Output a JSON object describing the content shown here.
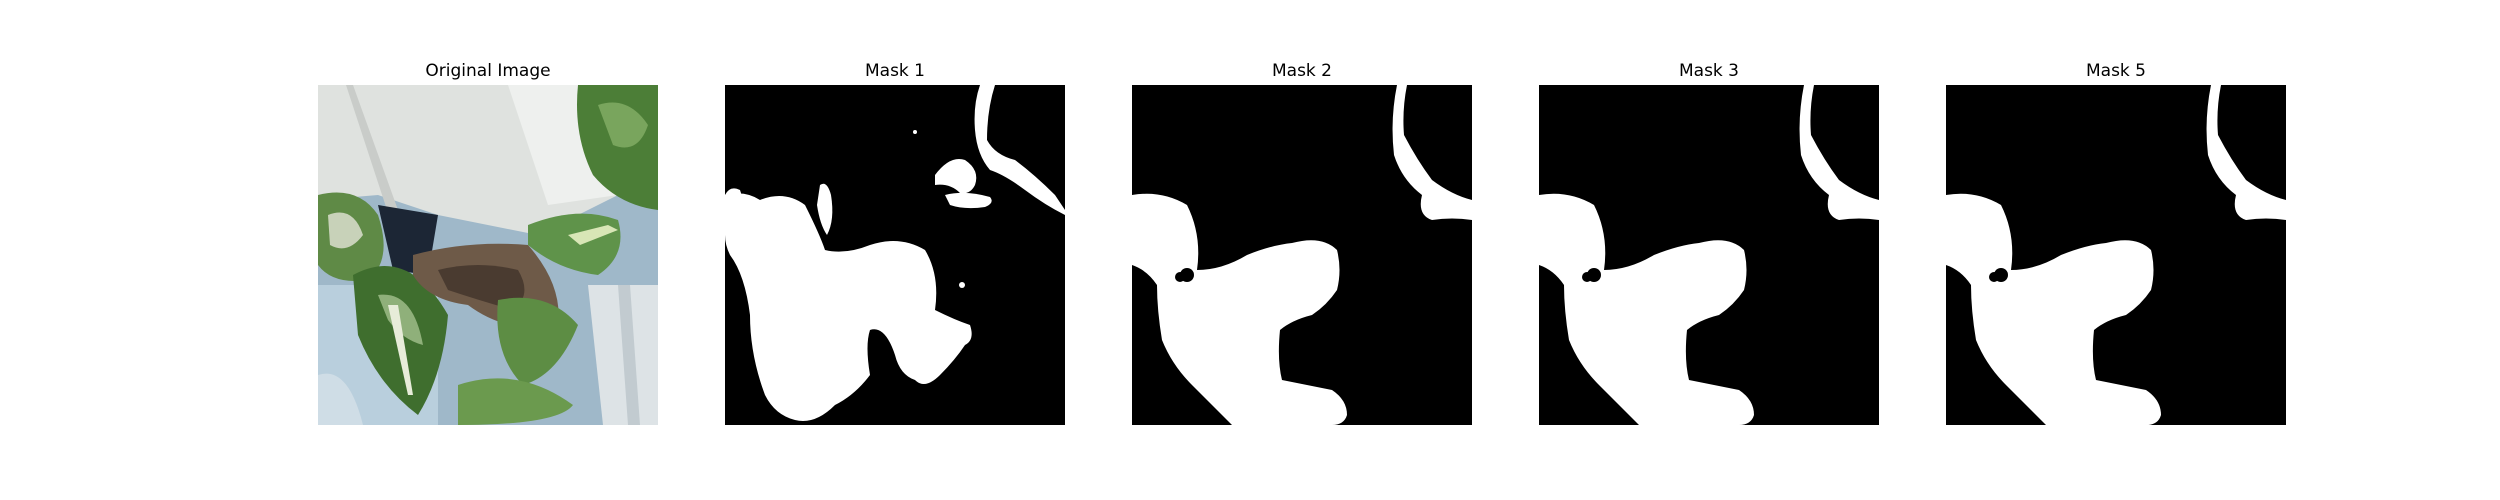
{
  "figure": {
    "panels": [
      {
        "title": "Original Image"
      },
      {
        "title": "Mask 1"
      },
      {
        "title": "Mask 2"
      },
      {
        "title": "Mask 3"
      },
      {
        "title": "Mask 5"
      }
    ]
  },
  "colors": {
    "mask_background": "#000000",
    "mask_foreground": "#ffffff",
    "leaf_green": "#4f7d3a",
    "pot_white": "#e6e8e6"
  }
}
